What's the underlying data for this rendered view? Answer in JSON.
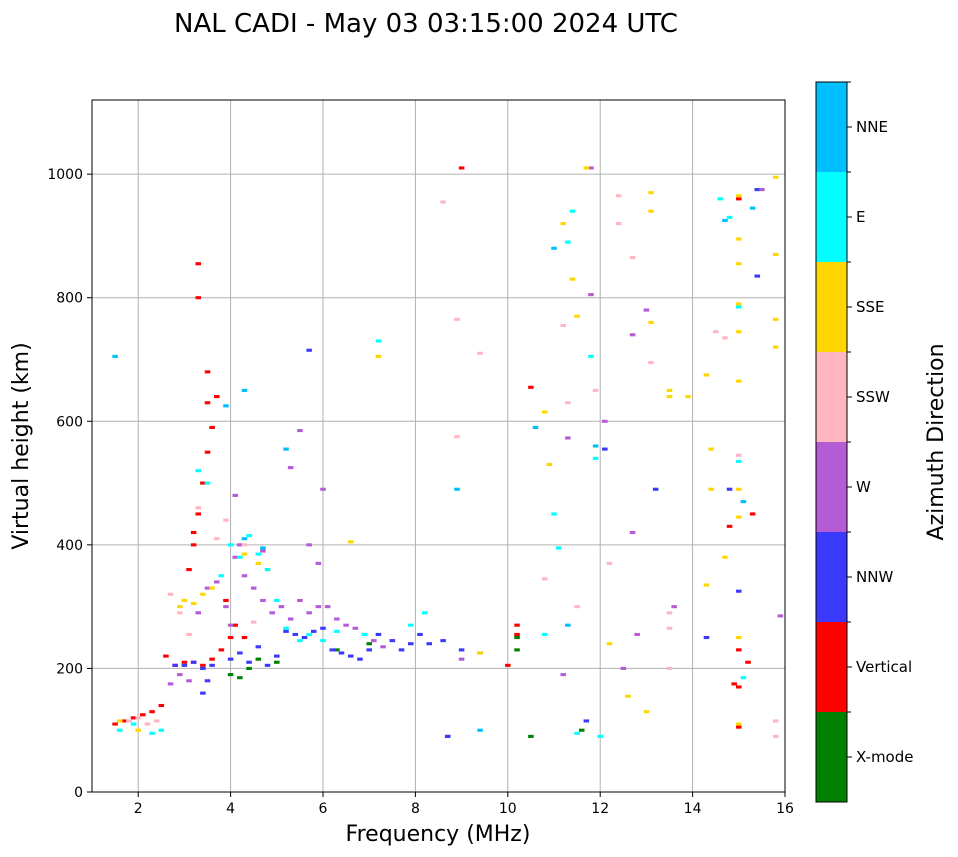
{
  "chart_data": {
    "type": "scatter",
    "title": "NAL CADI - May 03 03:15:00 2024 UTC",
    "xlabel": "Frequency (MHz)",
    "ylabel": "Virtual height (km)",
    "xlim": [
      1,
      16
    ],
    "ylim": [
      0,
      1120
    ],
    "xticks": [
      2,
      4,
      6,
      8,
      10,
      12,
      14,
      16
    ],
    "yticks": [
      0,
      200,
      400,
      600,
      800,
      1000
    ],
    "grid": true,
    "colorbar": {
      "label": "Azimuth Direction",
      "categories": [
        {
          "name": "X-mode",
          "color": "#008000"
        },
        {
          "name": "Vertical",
          "color": "#ff0000"
        },
        {
          "name": "NNW",
          "color": "#3a3aff"
        },
        {
          "name": "W",
          "color": "#b45cd6"
        },
        {
          "name": "SSW",
          "color": "#ffb6c1"
        },
        {
          "name": "SSE",
          "color": "#ffd700"
        },
        {
          "name": "E",
          "color": "#00ffff"
        },
        {
          "name": "NNE",
          "color": "#00bfff"
        }
      ]
    },
    "series": [
      {
        "name": "X-mode",
        "points": [
          [
            4.0,
            190
          ],
          [
            4.2,
            185
          ],
          [
            4.4,
            200
          ],
          [
            4.6,
            215
          ],
          [
            5.0,
            210
          ],
          [
            6.3,
            230
          ],
          [
            7.0,
            240
          ],
          [
            8.7,
            90
          ],
          [
            10.2,
            230
          ],
          [
            10.2,
            250
          ],
          [
            10.5,
            90
          ],
          [
            11.6,
            100
          ]
        ]
      },
      {
        "name": "Vertical",
        "points": [
          [
            1.5,
            110
          ],
          [
            1.7,
            115
          ],
          [
            1.9,
            120
          ],
          [
            2.1,
            125
          ],
          [
            2.3,
            130
          ],
          [
            2.5,
            140
          ],
          [
            2.6,
            220
          ],
          [
            2.8,
            205
          ],
          [
            3.0,
            210
          ],
          [
            3.2,
            210
          ],
          [
            3.4,
            205
          ],
          [
            3.6,
            215
          ],
          [
            3.8,
            230
          ],
          [
            4.0,
            250
          ],
          [
            3.2,
            400
          ],
          [
            3.3,
            450
          ],
          [
            3.4,
            500
          ],
          [
            3.5,
            550
          ],
          [
            3.6,
            590
          ],
          [
            3.5,
            630
          ],
          [
            3.7,
            640
          ],
          [
            3.3,
            800
          ],
          [
            3.3,
            855
          ],
          [
            3.5,
            680
          ],
          [
            3.1,
            360
          ],
          [
            3.2,
            420
          ],
          [
            3.9,
            310
          ],
          [
            4.1,
            270
          ],
          [
            4.3,
            250
          ],
          [
            10.2,
            270
          ],
          [
            10.2,
            255
          ],
          [
            10.5,
            655
          ],
          [
            10.0,
            205
          ],
          [
            14.9,
            175
          ],
          [
            15.0,
            170
          ],
          [
            15.0,
            105
          ],
          [
            15.3,
            450
          ],
          [
            14.8,
            430
          ],
          [
            15.0,
            230
          ],
          [
            15.2,
            210
          ],
          [
            9.0,
            1010
          ],
          [
            15.0,
            960
          ]
        ]
      },
      {
        "name": "NNW",
        "points": [
          [
            2.8,
            205
          ],
          [
            3.0,
            205
          ],
          [
            3.2,
            210
          ],
          [
            3.4,
            200
          ],
          [
            3.6,
            205
          ],
          [
            4.0,
            215
          ],
          [
            4.2,
            225
          ],
          [
            4.4,
            210
          ],
          [
            4.6,
            235
          ],
          [
            4.8,
            205
          ],
          [
            5.0,
            220
          ],
          [
            5.2,
            260
          ],
          [
            5.4,
            255
          ],
          [
            5.6,
            250
          ],
          [
            5.8,
            260
          ],
          [
            6.0,
            265
          ],
          [
            6.2,
            230
          ],
          [
            6.4,
            225
          ],
          [
            6.6,
            220
          ],
          [
            6.8,
            215
          ],
          [
            7.0,
            230
          ],
          [
            7.2,
            255
          ],
          [
            7.5,
            245
          ],
          [
            7.7,
            230
          ],
          [
            7.9,
            240
          ],
          [
            8.1,
            255
          ],
          [
            8.3,
            240
          ],
          [
            8.6,
            245
          ],
          [
            9.0,
            230
          ],
          [
            9.4,
            225
          ],
          [
            8.7,
            90
          ],
          [
            3.4,
            160
          ],
          [
            5.7,
            715
          ],
          [
            3.5,
            180
          ],
          [
            13.2,
            490
          ],
          [
            14.3,
            250
          ],
          [
            15.0,
            325
          ],
          [
            15.4,
            835
          ],
          [
            15.4,
            975
          ],
          [
            11.7,
            115
          ],
          [
            12.1,
            555
          ],
          [
            14.8,
            490
          ]
        ]
      },
      {
        "name": "W",
        "points": [
          [
            2.7,
            175
          ],
          [
            2.9,
            190
          ],
          [
            3.1,
            180
          ],
          [
            3.3,
            290
          ],
          [
            3.5,
            330
          ],
          [
            3.7,
            340
          ],
          [
            3.9,
            300
          ],
          [
            4.0,
            270
          ],
          [
            4.1,
            380
          ],
          [
            4.2,
            400
          ],
          [
            4.3,
            350
          ],
          [
            4.5,
            330
          ],
          [
            4.7,
            310
          ],
          [
            4.9,
            290
          ],
          [
            5.1,
            300
          ],
          [
            5.3,
            280
          ],
          [
            5.5,
            310
          ],
          [
            5.7,
            290
          ],
          [
            5.9,
            300
          ],
          [
            6.1,
            300
          ],
          [
            6.3,
            280
          ],
          [
            6.5,
            270
          ],
          [
            6.7,
            265
          ],
          [
            6.9,
            255
          ],
          [
            7.1,
            245
          ],
          [
            7.3,
            235
          ],
          [
            4.1,
            480
          ],
          [
            4.7,
            390
          ],
          [
            5.3,
            525
          ],
          [
            5.5,
            585
          ],
          [
            6.0,
            490
          ],
          [
            5.9,
            370
          ],
          [
            5.7,
            400
          ],
          [
            9.0,
            215
          ],
          [
            11.2,
            190
          ],
          [
            11.8,
            805
          ],
          [
            11.8,
            1010
          ],
          [
            12.1,
            600
          ],
          [
            12.5,
            200
          ],
          [
            12.8,
            255
          ],
          [
            13.0,
            780
          ],
          [
            13.6,
            300
          ],
          [
            15.9,
            285
          ],
          [
            15.5,
            975
          ],
          [
            11.3,
            573
          ],
          [
            12.7,
            740
          ],
          [
            12.7,
            420
          ]
        ]
      },
      {
        "name": "SSW",
        "points": [
          [
            1.8,
            115
          ],
          [
            2.0,
            120
          ],
          [
            2.4,
            115
          ],
          [
            2.2,
            110
          ],
          [
            2.7,
            320
          ],
          [
            2.9,
            290
          ],
          [
            3.1,
            255
          ],
          [
            3.3,
            460
          ],
          [
            3.7,
            410
          ],
          [
            3.9,
            440
          ],
          [
            4.3,
            400
          ],
          [
            4.5,
            275
          ],
          [
            8.9,
            765
          ],
          [
            8.6,
            955
          ],
          [
            8.9,
            575
          ],
          [
            9.4,
            710
          ],
          [
            11.2,
            755
          ],
          [
            11.5,
            300
          ],
          [
            11.9,
            650
          ],
          [
            12.2,
            370
          ],
          [
            12.4,
            965
          ],
          [
            12.7,
            865
          ],
          [
            13.1,
            695
          ],
          [
            13.5,
            290
          ],
          [
            13.5,
            265
          ],
          [
            14.5,
            745
          ],
          [
            14.7,
            735
          ],
          [
            15.0,
            545
          ],
          [
            15.8,
            115
          ],
          [
            15.8,
            90
          ],
          [
            13.5,
            200
          ],
          [
            10.8,
            345
          ],
          [
            11.3,
            630
          ],
          [
            12.4,
            920
          ]
        ]
      },
      {
        "name": "SSE",
        "points": [
          [
            1.6,
            115
          ],
          [
            2.0,
            100
          ],
          [
            2.9,
            300
          ],
          [
            3.0,
            310
          ],
          [
            3.2,
            305
          ],
          [
            3.4,
            320
          ],
          [
            3.6,
            330
          ],
          [
            4.3,
            385
          ],
          [
            4.6,
            370
          ],
          [
            4.8,
            360
          ],
          [
            6.6,
            405
          ],
          [
            7.2,
            705
          ],
          [
            9.4,
            225
          ],
          [
            10.9,
            530
          ],
          [
            11.5,
            770
          ],
          [
            11.4,
            830
          ],
          [
            11.2,
            920
          ],
          [
            11.7,
            1010
          ],
          [
            12.2,
            240
          ],
          [
            12.6,
            155
          ],
          [
            13.0,
            130
          ],
          [
            13.1,
            940
          ],
          [
            13.1,
            970
          ],
          [
            13.1,
            760
          ],
          [
            13.5,
            640
          ],
          [
            13.5,
            650
          ],
          [
            13.9,
            640
          ],
          [
            14.3,
            675
          ],
          [
            14.4,
            555
          ],
          [
            14.4,
            490
          ],
          [
            15.0,
            110
          ],
          [
            15.0,
            250
          ],
          [
            15.0,
            445
          ],
          [
            15.0,
            490
          ],
          [
            15.0,
            665
          ],
          [
            15.0,
            745
          ],
          [
            15.0,
            790
          ],
          [
            15.0,
            855
          ],
          [
            15.0,
            895
          ],
          [
            15.0,
            965
          ],
          [
            15.8,
            870
          ],
          [
            15.8,
            765
          ],
          [
            15.8,
            720
          ],
          [
            15.8,
            995
          ],
          [
            14.3,
            335
          ],
          [
            14.7,
            380
          ],
          [
            10.8,
            615
          ]
        ]
      },
      {
        "name": "E",
        "points": [
          [
            1.6,
            100
          ],
          [
            1.9,
            110
          ],
          [
            2.3,
            95
          ],
          [
            2.5,
            100
          ],
          [
            3.3,
            520
          ],
          [
            3.5,
            500
          ],
          [
            3.8,
            350
          ],
          [
            4.0,
            400
          ],
          [
            4.2,
            380
          ],
          [
            4.4,
            415
          ],
          [
            4.6,
            385
          ],
          [
            4.8,
            360
          ],
          [
            5.0,
            310
          ],
          [
            5.2,
            265
          ],
          [
            5.5,
            245
          ],
          [
            5.7,
            255
          ],
          [
            6.0,
            245
          ],
          [
            6.3,
            260
          ],
          [
            6.9,
            255
          ],
          [
            7.2,
            730
          ],
          [
            7.9,
            270
          ],
          [
            8.2,
            290
          ],
          [
            10.8,
            255
          ],
          [
            11.1,
            395
          ],
          [
            11.0,
            450
          ],
          [
            11.3,
            890
          ],
          [
            11.4,
            940
          ],
          [
            11.8,
            705
          ],
          [
            11.9,
            540
          ],
          [
            12.0,
            90
          ],
          [
            14.6,
            960
          ],
          [
            14.8,
            930
          ],
          [
            15.0,
            535
          ],
          [
            15.0,
            785
          ],
          [
            15.1,
            185
          ],
          [
            11.5,
            95
          ]
        ]
      },
      {
        "name": "NNE",
        "points": [
          [
            1.5,
            705
          ],
          [
            4.3,
            650
          ],
          [
            4.3,
            410
          ],
          [
            3.9,
            625
          ],
          [
            4.7,
            395
          ],
          [
            5.2,
            555
          ],
          [
            8.9,
            490
          ],
          [
            9.4,
            100
          ],
          [
            10.6,
            590
          ],
          [
            11.3,
            270
          ],
          [
            11.9,
            560
          ],
          [
            14.7,
            925
          ],
          [
            15.1,
            470
          ],
          [
            15.3,
            945
          ],
          [
            11.0,
            880
          ]
        ]
      }
    ]
  }
}
